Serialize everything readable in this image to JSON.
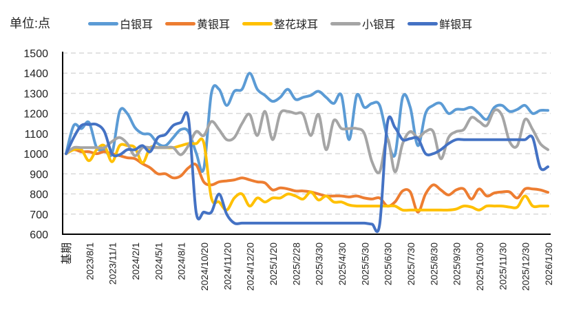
{
  "chart_data": {
    "type": "line",
    "unit_label": "单位:点",
    "ylim": [
      600,
      1500
    ],
    "yticks": [
      600,
      700,
      800,
      900,
      1000,
      1100,
      1200,
      1300,
      1400,
      1500
    ],
    "grid": true,
    "legend_position": "top",
    "x_tick_labels": [
      "基期",
      "2023/8/1",
      "2023/11/1",
      "2024/2/1",
      "2024/5/1",
      "2024/8/1",
      "2024/10/20",
      "2024/11/20",
      "2024/12/20",
      "2025/1/20",
      "2025/2/28",
      "2025/3/30",
      "2025/4/30",
      "2025/5/30",
      "2025/6/30",
      "2025/7/30",
      "2025/8/30",
      "2025/9/30",
      "2025/10/30",
      "2025/11/30",
      "2025/12/30",
      "2026/1/30"
    ],
    "series": [
      {
        "name": "白银耳",
        "color": "#5B9BD5",
        "values": [
          1000,
          1140,
          1125,
          1155,
          1030,
          1020,
          1000,
          1210,
          1200,
          1130,
          1100,
          1095,
          1050,
          1040,
          1080,
          1120,
          1110,
          1005,
          925,
          1300,
          1320,
          1240,
          1310,
          1320,
          1400,
          1320,
          1290,
          1260,
          1280,
          1320,
          1270,
          1280,
          1290,
          1310,
          1280,
          1250,
          1290,
          1070,
          1290,
          1230,
          1250,
          1240,
          1080,
          995,
          1280,
          1230,
          1040,
          1200,
          1240,
          1250,
          1200,
          1220,
          1220,
          1230,
          1200,
          1170,
          1230,
          1240,
          1210,
          1220,
          1240,
          1200,
          1215,
          1215
        ]
      },
      {
        "name": "黄银耳",
        "color": "#ED7D31",
        "values": [
          1000,
          1020,
          1010,
          1010,
          1000,
          1010,
          1000,
          990,
          980,
          975,
          950,
          930,
          900,
          900,
          880,
          890,
          930,
          945,
          860,
          845,
          860,
          865,
          870,
          880,
          870,
          860,
          855,
          820,
          830,
          825,
          815,
          815,
          810,
          800,
          790,
          790,
          790,
          785,
          790,
          780,
          775,
          780,
          740,
          760,
          815,
          810,
          710,
          800,
          845,
          820,
          795,
          820,
          825,
          775,
          825,
          790,
          805,
          810,
          810,
          780,
          825,
          825,
          820,
          808
        ]
      },
      {
        "name": "整花球耳",
        "color": "#FFC000",
        "values": [
          1000,
          1020,
          1020,
          965,
          1020,
          1040,
          960,
          1040,
          1040,
          1030,
          955,
          1030,
          1030,
          1030,
          1030,
          1040,
          1050,
          1050,
          1055,
          780,
          760,
          720,
          780,
          800,
          740,
          780,
          760,
          780,
          780,
          800,
          790,
          775,
          810,
          770,
          790,
          760,
          760,
          745,
          740,
          740,
          740,
          740,
          740,
          740,
          720,
          720,
          720,
          720,
          720,
          720,
          720,
          725,
          740,
          735,
          720,
          740,
          740,
          740,
          735,
          735,
          790,
          740,
          740,
          740
        ]
      },
      {
        "name": "小银耳",
        "color": "#A5A5A5",
        "values": [
          1000,
          1030,
          1030,
          1030,
          1030,
          1030,
          1060,
          1080,
          1050,
          990,
          1030,
          1030,
          1030,
          1030,
          1030,
          995,
          1040,
          1110,
          1090,
          1160,
          1120,
          1070,
          1080,
          1150,
          1195,
          1090,
          1210,
          1070,
          1200,
          1210,
          1200,
          1195,
          1090,
          1195,
          1020,
          1165,
          1125,
          1125,
          1125,
          1100,
          960,
          910,
          1075,
          910,
          1050,
          1110,
          1080,
          1110,
          1110,
          975,
          1080,
          1110,
          1120,
          1180,
          1160,
          1140,
          1215,
          1190,
          1060,
          1040,
          1170,
          1120,
          1050,
          1020
        ]
      },
      {
        "name": "鲜银耳",
        "color": "#4472C4",
        "values": [
          1000,
          1080,
          1140,
          1145,
          1145,
          1110,
          1000,
          995,
          1020,
          1020,
          1040,
          1010,
          1080,
          1095,
          1140,
          1155,
          1175,
          710,
          710,
          710,
          800,
          700,
          655,
          655,
          655,
          655,
          655,
          655,
          655,
          655,
          655,
          655,
          655,
          655,
          655,
          655,
          655,
          655,
          655,
          655,
          650,
          650,
          1150,
          1130,
          1070,
          1075,
          1075,
          1000,
          1000,
          1020,
          1050,
          1070,
          1070,
          1070,
          1070,
          1070,
          1070,
          1070,
          1070,
          1070,
          1070,
          1080,
          930,
          935
        ]
      }
    ]
  }
}
